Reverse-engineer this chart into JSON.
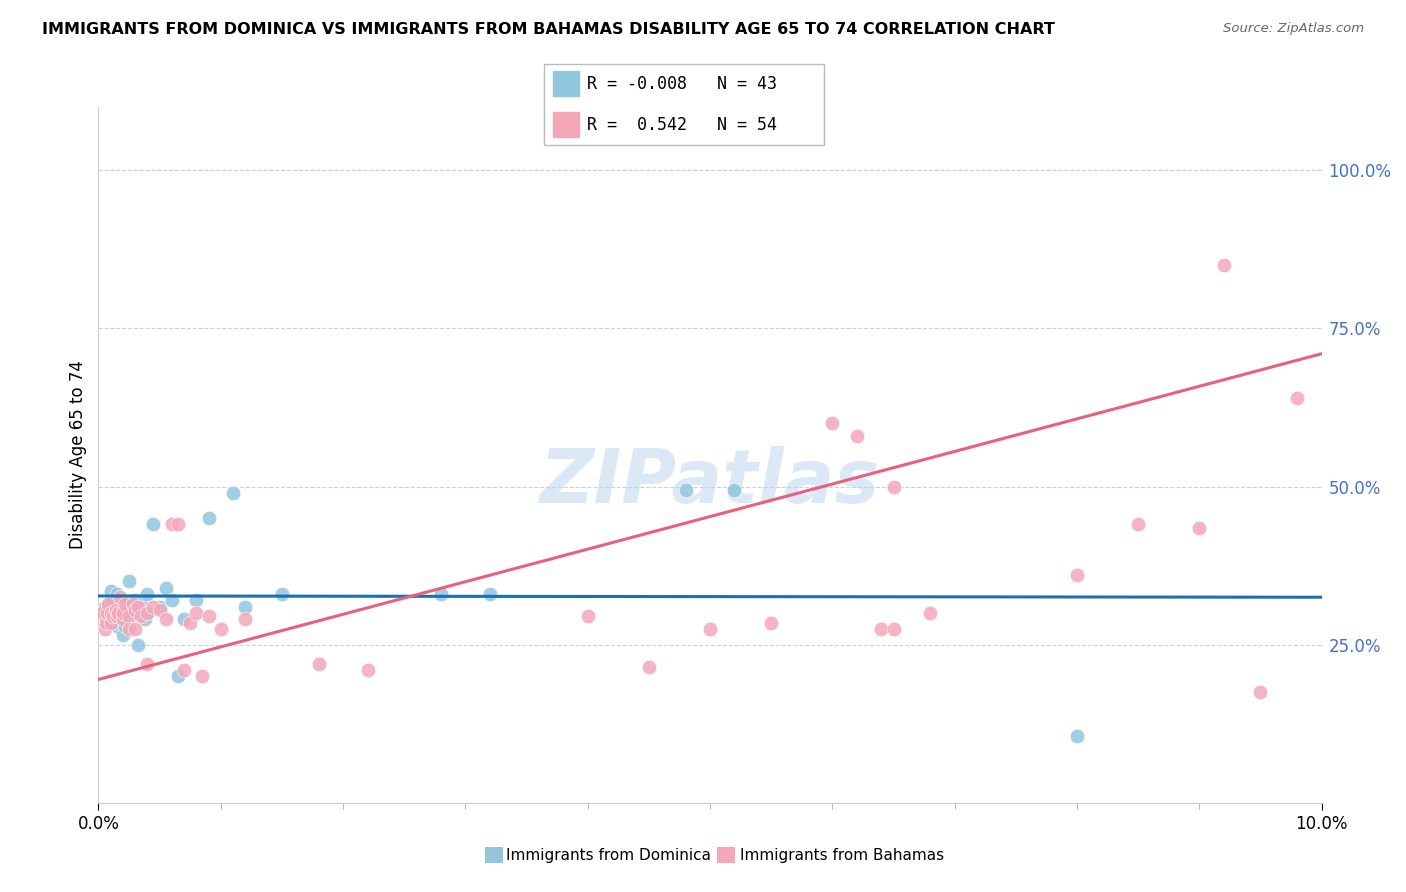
{
  "title": "IMMIGRANTS FROM DOMINICA VS IMMIGRANTS FROM BAHAMAS DISABILITY AGE 65 TO 74 CORRELATION CHART",
  "source": "Source: ZipAtlas.com",
  "ylabel": "Disability Age 65 to 74",
  "ytick_labels": [
    "25.0%",
    "50.0%",
    "75.0%",
    "100.0%"
  ],
  "ytick_values": [
    0.25,
    0.5,
    0.75,
    1.0
  ],
  "xtick_labels": [
    "0.0%",
    "10.0%"
  ],
  "xtick_values": [
    0.0,
    0.1
  ],
  "legend1_r": "-0.008",
  "legend1_n": "43",
  "legend2_r": "0.542",
  "legend2_n": "54",
  "legend1_label": "Immigrants from Dominica",
  "legend2_label": "Immigrants from Bahamas",
  "color_blue": "#92c5de",
  "color_pink": "#f4a7b9",
  "line_blue": "#1a6faf",
  "line_pink": "#e8607a",
  "watermark": "ZIPatlas",
  "dominica_x": [
    0.0005,
    0.0005,
    0.0007,
    0.0008,
    0.001,
    0.001,
    0.0012,
    0.0012,
    0.0015,
    0.0015,
    0.0015,
    0.0018,
    0.002,
    0.002,
    0.002,
    0.0022,
    0.0022,
    0.0025,
    0.0025,
    0.0028,
    0.003,
    0.003,
    0.0032,
    0.0035,
    0.0038,
    0.004,
    0.004,
    0.0045,
    0.005,
    0.0055,
    0.006,
    0.0065,
    0.007,
    0.008,
    0.009,
    0.011,
    0.012,
    0.015,
    0.028,
    0.032,
    0.048,
    0.052,
    0.08
  ],
  "dominica_y": [
    0.305,
    0.31,
    0.3,
    0.29,
    0.335,
    0.315,
    0.3,
    0.32,
    0.31,
    0.33,
    0.28,
    0.3,
    0.295,
    0.32,
    0.265,
    0.31,
    0.28,
    0.31,
    0.35,
    0.31,
    0.32,
    0.32,
    0.25,
    0.315,
    0.29,
    0.33,
    0.3,
    0.44,
    0.31,
    0.34,
    0.32,
    0.2,
    0.29,
    0.32,
    0.45,
    0.49,
    0.31,
    0.33,
    0.33,
    0.33,
    0.495,
    0.495,
    0.105
  ],
  "bahamas_x": [
    0.0003,
    0.0005,
    0.0006,
    0.0007,
    0.0008,
    0.001,
    0.001,
    0.0012,
    0.0014,
    0.0015,
    0.0016,
    0.0018,
    0.002,
    0.002,
    0.0022,
    0.0025,
    0.0025,
    0.0028,
    0.003,
    0.003,
    0.0032,
    0.0035,
    0.004,
    0.004,
    0.0045,
    0.005,
    0.0055,
    0.006,
    0.0065,
    0.007,
    0.0075,
    0.008,
    0.0085,
    0.009,
    0.01,
    0.012,
    0.018,
    0.022,
    0.04,
    0.045,
    0.05,
    0.055,
    0.06,
    0.062,
    0.064,
    0.065,
    0.065,
    0.068,
    0.08,
    0.085,
    0.09,
    0.092,
    0.095,
    0.098
  ],
  "bahamas_y": [
    0.3,
    0.275,
    0.285,
    0.3,
    0.315,
    0.285,
    0.3,
    0.295,
    0.305,
    0.295,
    0.3,
    0.325,
    0.29,
    0.3,
    0.315,
    0.295,
    0.275,
    0.315,
    0.275,
    0.305,
    0.31,
    0.295,
    0.22,
    0.3,
    0.31,
    0.305,
    0.29,
    0.44,
    0.44,
    0.21,
    0.285,
    0.3,
    0.2,
    0.295,
    0.275,
    0.29,
    0.22,
    0.21,
    0.295,
    0.215,
    0.275,
    0.285,
    0.6,
    0.58,
    0.275,
    0.5,
    0.275,
    0.3,
    0.36,
    0.44,
    0.435,
    0.85,
    0.175,
    0.64
  ],
  "dominica_trend_x": [
    0.0,
    0.1
  ],
  "dominica_trend_y": [
    0.327,
    0.325
  ],
  "bahamas_trend_x": [
    0.0,
    0.1
  ],
  "bahamas_trend_y": [
    0.195,
    0.71
  ],
  "xlim": [
    0.0,
    0.1
  ],
  "ylim": [
    0.0,
    1.1
  ],
  "grid_color": "#d0d0d0",
  "right_axis_color": "#4472C4"
}
